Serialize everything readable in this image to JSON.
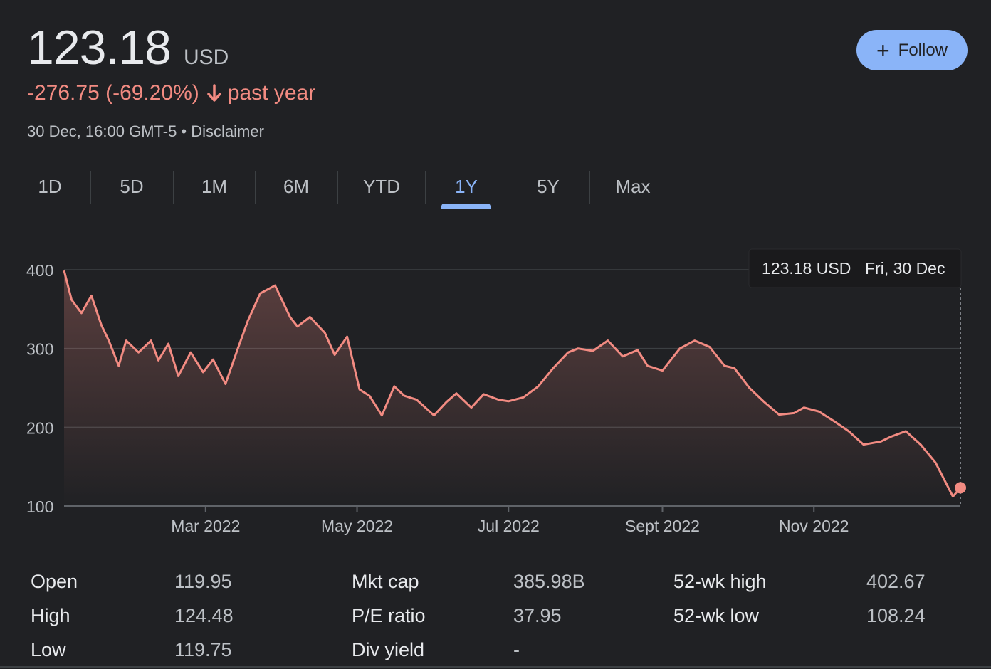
{
  "quote": {
    "price": "123.18",
    "currency": "USD",
    "change": "-276.75 (-69.20%)",
    "period": "past year",
    "timestamp": "30 Dec, 16:00 GMT-5 • Disclaimer",
    "down_color": "#f28b82"
  },
  "follow_button": {
    "label": "Follow",
    "icon": "plus-icon",
    "color": "#8ab4f8"
  },
  "tabs": [
    {
      "label": "1D"
    },
    {
      "label": "5D"
    },
    {
      "label": "1M"
    },
    {
      "label": "6M"
    },
    {
      "label": "YTD"
    },
    {
      "label": "1Y",
      "active": true
    },
    {
      "label": "5Y"
    },
    {
      "label": "Max"
    }
  ],
  "tooltip": {
    "price": "123.18 USD",
    "date": "Fri, 30 Dec"
  },
  "chart_data": {
    "type": "area",
    "ylim": [
      100,
      400
    ],
    "yticks": [
      100,
      200,
      300,
      400
    ],
    "xticks": [
      "Mar 2022",
      "May 2022",
      "Jul 2022",
      "Sept 2022",
      "Nov 2022"
    ],
    "grid": true,
    "line_color": "#f28b82",
    "series": [
      {
        "x": [
          "2022-01-03",
          "2022-01-06",
          "2022-01-10",
          "2022-01-14",
          "2022-01-18",
          "2022-01-21",
          "2022-01-25",
          "2022-01-28",
          "2022-02-02",
          "2022-02-07",
          "2022-02-10",
          "2022-02-14",
          "2022-02-18",
          "2022-02-23",
          "2022-02-28",
          "2022-03-04",
          "2022-03-09",
          "2022-03-14",
          "2022-03-18",
          "2022-03-23",
          "2022-03-29",
          "2022-04-04",
          "2022-04-07",
          "2022-04-12",
          "2022-04-18",
          "2022-04-22",
          "2022-04-27",
          "2022-05-02",
          "2022-05-06",
          "2022-05-11",
          "2022-05-16",
          "2022-05-20",
          "2022-05-25",
          "2022-06-01",
          "2022-06-06",
          "2022-06-10",
          "2022-06-16",
          "2022-06-21",
          "2022-06-27",
          "2022-07-01",
          "2022-07-07",
          "2022-07-13",
          "2022-07-19",
          "2022-07-25",
          "2022-07-29",
          "2022-08-04",
          "2022-08-10",
          "2022-08-16",
          "2022-08-22",
          "2022-08-26",
          "2022-09-01",
          "2022-09-08",
          "2022-09-14",
          "2022-09-20",
          "2022-09-26",
          "2022-09-30",
          "2022-10-06",
          "2022-10-12",
          "2022-10-18",
          "2022-10-24",
          "2022-10-28",
          "2022-11-03",
          "2022-11-09",
          "2022-11-15",
          "2022-11-21",
          "2022-11-28",
          "2022-12-02",
          "2022-12-08",
          "2022-12-14",
          "2022-12-20",
          "2022-12-27",
          "2022-12-30"
        ],
        "values": [
          399,
          362,
          345,
          367,
          330,
          310,
          278,
          310,
          295,
          310,
          285,
          306,
          265,
          295,
          270,
          286,
          255,
          300,
          335,
          370,
          380,
          340,
          328,
          340,
          320,
          292,
          315,
          248,
          240,
          215,
          252,
          240,
          235,
          215,
          232,
          243,
          225,
          242,
          235,
          233,
          238,
          252,
          275,
          295,
          300,
          297,
          310,
          290,
          298,
          278,
          272,
          300,
          310,
          302,
          278,
          275,
          250,
          232,
          216,
          218,
          225,
          220,
          208,
          195,
          178,
          182,
          188,
          195,
          178,
          155,
          112,
          123.18
        ]
      }
    ]
  },
  "stats": [
    [
      {
        "label": "Open",
        "value": "119.95"
      },
      {
        "label": "High",
        "value": "124.48"
      },
      {
        "label": "Low",
        "value": "119.75"
      }
    ],
    [
      {
        "label": "Mkt cap",
        "value": "385.98B"
      },
      {
        "label": "P/E ratio",
        "value": "37.95"
      },
      {
        "label": "Div yield",
        "value": "-"
      }
    ],
    [
      {
        "label": "52-wk high",
        "value": "402.67"
      },
      {
        "label": "52-wk low",
        "value": "108.24"
      }
    ]
  ]
}
